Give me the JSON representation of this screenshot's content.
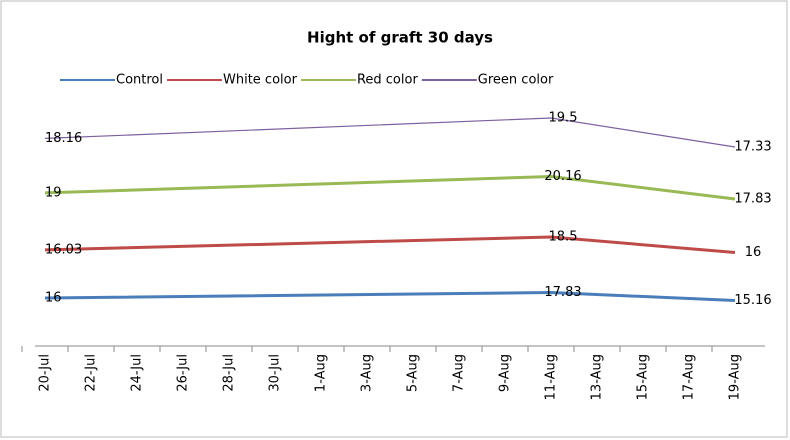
{
  "chart_data": {
    "type": "line",
    "stacked": true,
    "title": "Hight of graft 30 days",
    "x": [
      "20-Jul",
      "11-Aug",
      "19-Aug"
    ],
    "xticks": [
      "20-Jul",
      "22-Jul",
      "24-Jul",
      "26-Jul",
      "28-Jul",
      "30-Jul",
      "1-Aug",
      "3-Aug",
      "5-Aug",
      "7-Aug",
      "9-Aug",
      "11-Aug",
      "13-Aug",
      "15-Aug",
      "17-Aug",
      "19-Aug"
    ],
    "legend": "top",
    "series": [
      {
        "name": "Control",
        "color": "#4a7ebb",
        "values": [
          16,
          17.83,
          15.16
        ]
      },
      {
        "name": "White color",
        "color": "#be4b48",
        "values": [
          16.03,
          18.5,
          16
        ]
      },
      {
        "name": "Red color",
        "color": "#98b954",
        "values": [
          19,
          20.16,
          17.83
        ]
      },
      {
        "name": "Green color",
        "color": "#7d60a0",
        "values": [
          18.16,
          19.5,
          17.33
        ]
      }
    ]
  }
}
